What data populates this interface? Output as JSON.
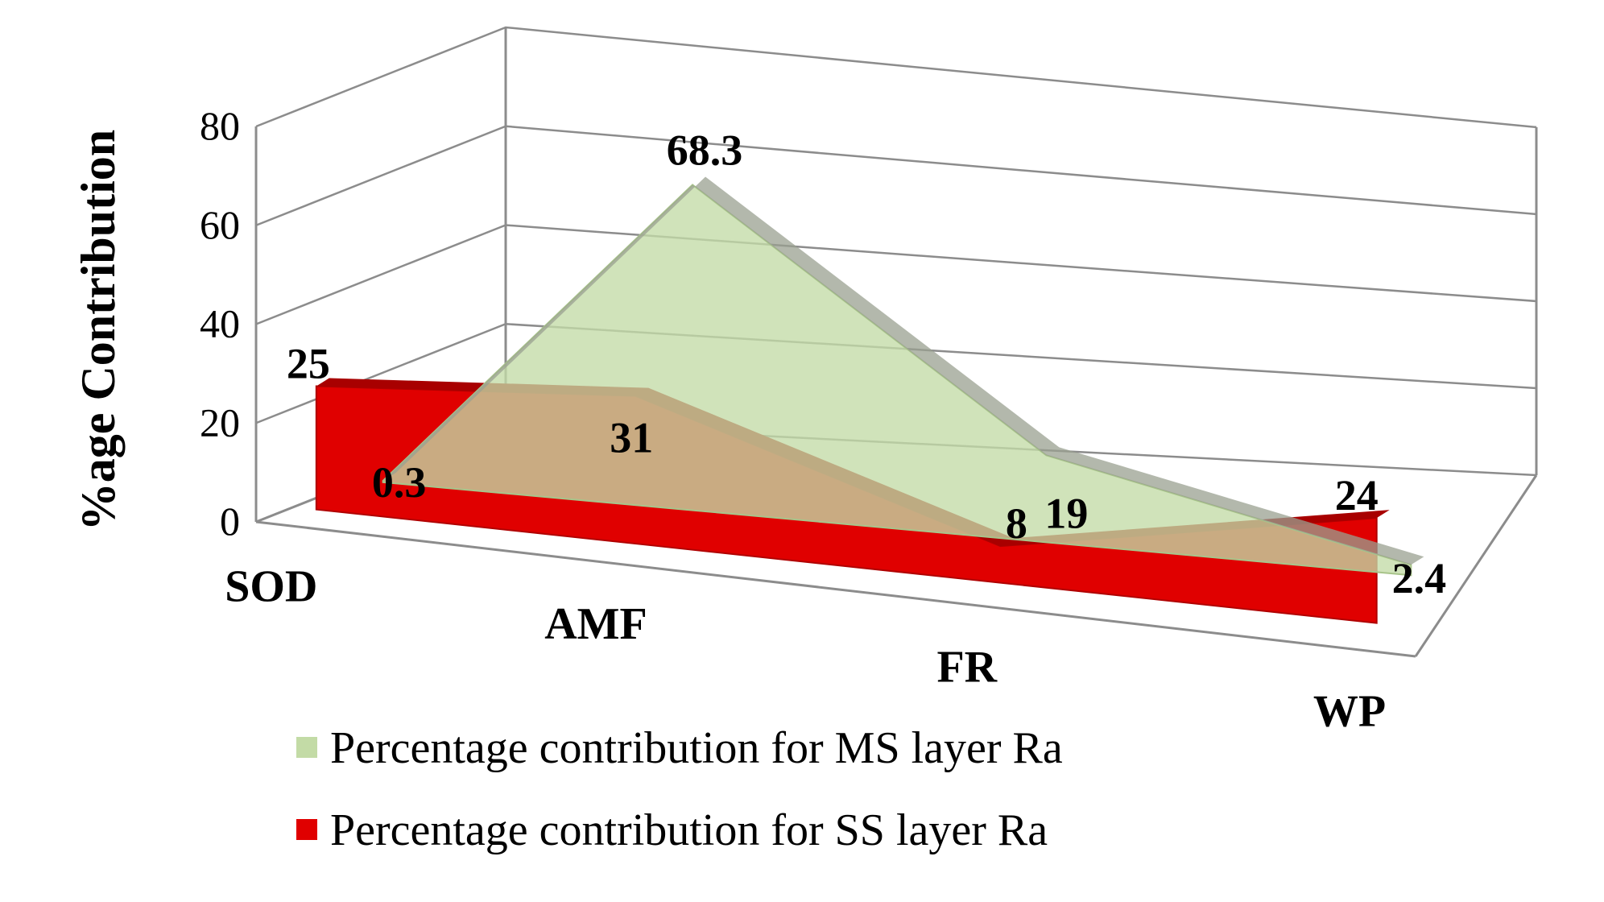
{
  "chart_data": {
    "type": "area",
    "categories": [
      "SOD",
      "AMF",
      "FR",
      "WP"
    ],
    "series": [
      {
        "name": "Percentage contribution for MS layer Ra",
        "values": [
          0.3,
          68.3,
          19,
          2.4
        ],
        "labels": [
          "0.3",
          "68.3",
          "19",
          "2.4"
        ],
        "color": "#c3dba6"
      },
      {
        "name": "Percentage contribution for SS layer Ra",
        "values": [
          25,
          31,
          8,
          24
        ],
        "labels": [
          "25",
          "31",
          "8",
          "24"
        ],
        "color": "#e00000"
      }
    ],
    "title": "",
    "xlabel": "",
    "ylabel": "%age Contribution",
    "ylim": [
      0,
      80
    ],
    "yticks": [
      "0",
      "20",
      "40",
      "60",
      "80"
    ],
    "grid": true,
    "legend_position": "bottom"
  }
}
